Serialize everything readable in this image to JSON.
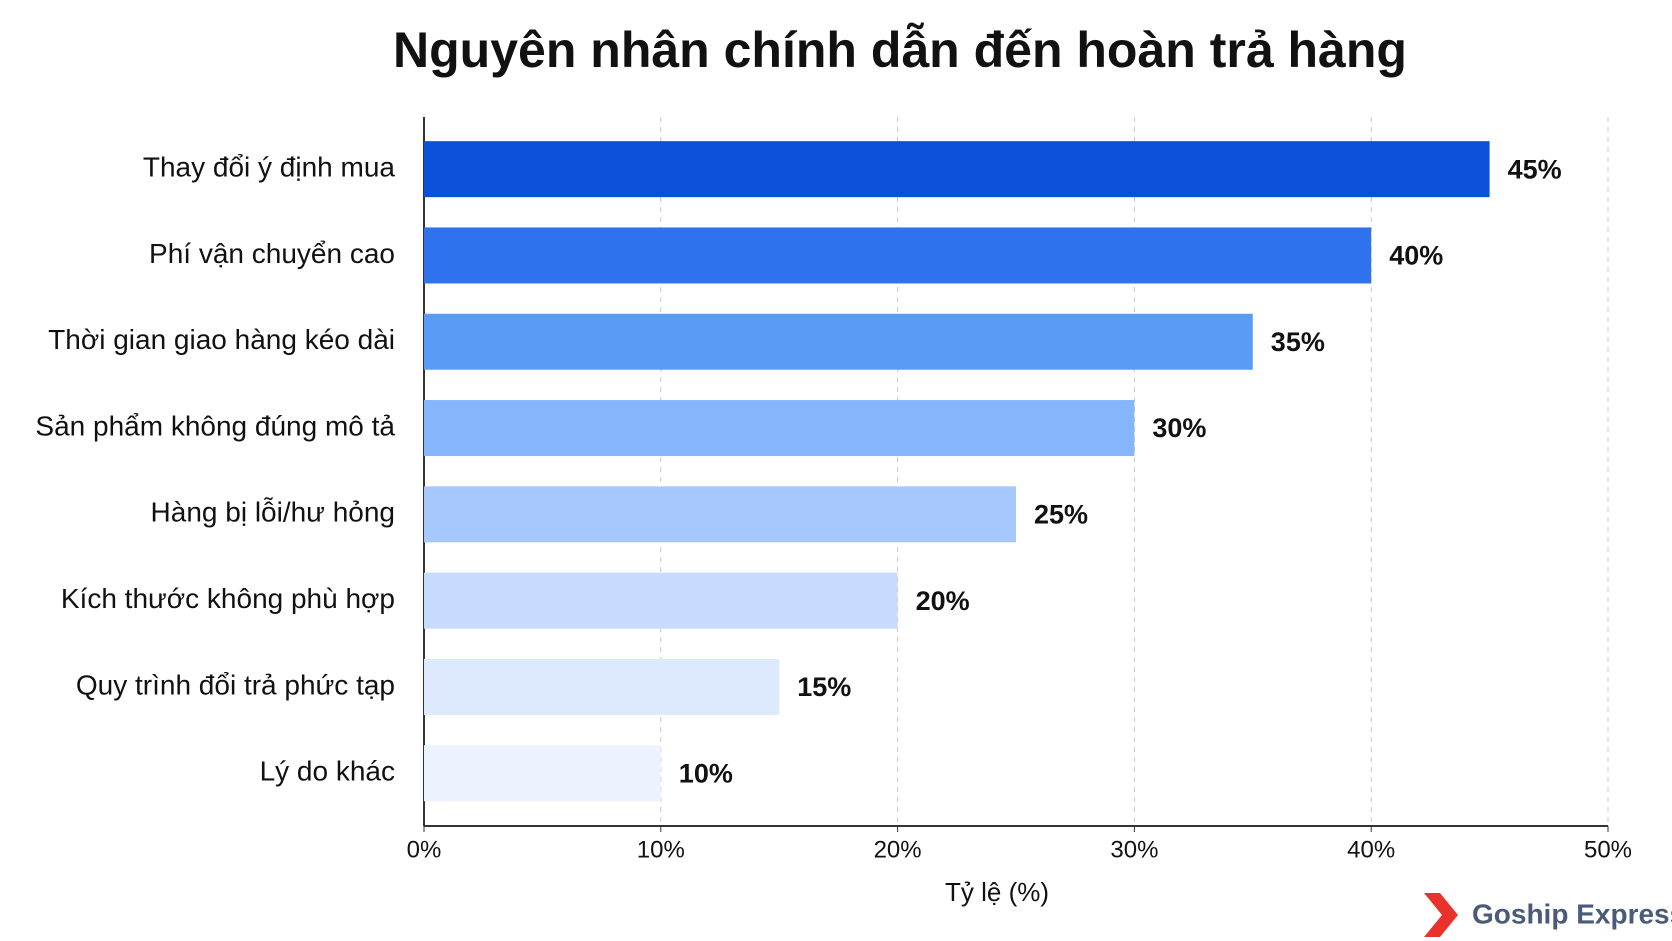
{
  "chart_data": {
    "type": "bar",
    "orientation": "horizontal",
    "title": "Nguyên nhân chính dẫn đến hoàn trả hàng",
    "x_label": "Tỷ lệ (%)",
    "categories": [
      "Thay đổi ý định mua",
      "Phí vận chuyển cao",
      "Thời gian giao hàng kéo dài",
      "Sản phẩm không đúng mô tả",
      "Hàng bị lỗi/hư hỏng",
      "Kích thước không phù hợp",
      "Quy trình đổi trả phức tạp",
      "Lý do khác"
    ],
    "values": [
      45,
      40,
      35,
      30,
      25,
      20,
      15,
      10
    ],
    "value_labels": [
      "45%",
      "40%",
      "35%",
      "30%",
      "25%",
      "20%",
      "15%",
      "10%"
    ],
    "colors": [
      "#0b50d8",
      "#2f72ee",
      "#5b9bf8",
      "#86b5fb",
      "#a6c8fc",
      "#c6dbfd",
      "#dde9fd",
      "#ecf3fe"
    ],
    "xlim": [
      0,
      50
    ],
    "xticks": [
      {
        "value": 0,
        "label": "0%"
      },
      {
        "value": 10,
        "label": "10%"
      },
      {
        "value": 20,
        "label": "20%"
      },
      {
        "value": 30,
        "label": "30%"
      },
      {
        "value": 40,
        "label": "40%"
      },
      {
        "value": 50,
        "label": "50%"
      }
    ],
    "grid": true
  },
  "brand": "Goship Express"
}
